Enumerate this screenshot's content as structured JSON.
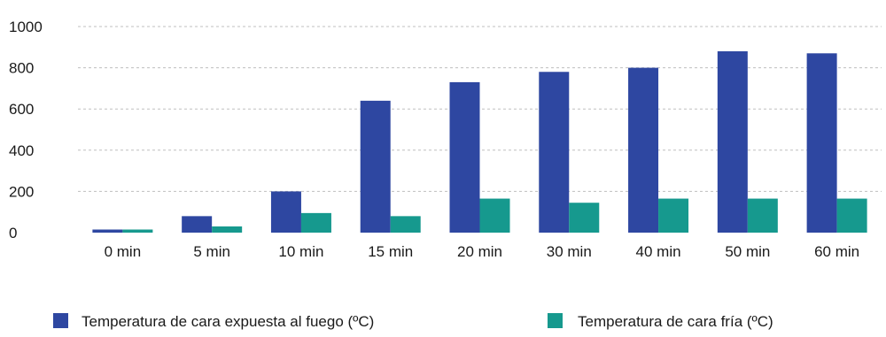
{
  "chart_data": {
    "type": "bar",
    "categories": [
      "0 min",
      "5 min",
      "10 min",
      "15 min",
      "20 min",
      "30 min",
      "40 min",
      "50 min",
      "60 min"
    ],
    "series": [
      {
        "name": "Temperatura de cara expuesta al fuego (ºC)",
        "color": "#2E47A1",
        "values": [
          15,
          80,
          200,
          640,
          730,
          780,
          800,
          880,
          870
        ]
      },
      {
        "name": "Temperatura de cara fría (ºC)",
        "color": "#16998E",
        "values": [
          15,
          30,
          95,
          80,
          165,
          145,
          165,
          165,
          165
        ]
      }
    ],
    "ylim": [
      0,
      1000
    ],
    "yticks": [
      0,
      200,
      400,
      600,
      800,
      1000
    ],
    "grid": true,
    "legend": "bottom"
  }
}
